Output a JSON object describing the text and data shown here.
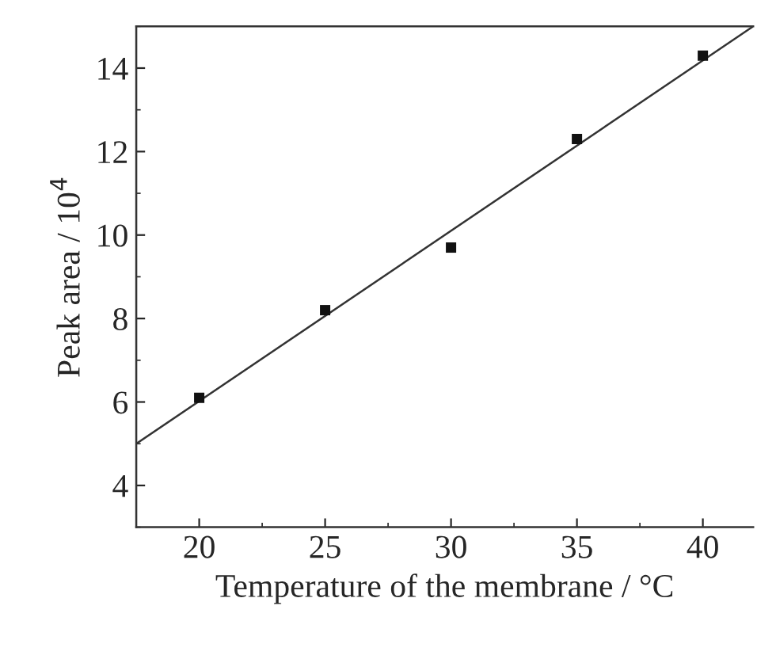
{
  "chart_data": {
    "type": "scatter",
    "xlabel": "Temperature of the membrane / °C",
    "ylabel": "Peak area / 10$^{4}$",
    "series": [
      {
        "color": "#111111",
        "marker": "square",
        "x": [
          20,
          25,
          30,
          35,
          40
        ],
        "values": [
          6.1,
          8.2,
          9.7,
          12.3,
          14.3
        ]
      },
      {
        "type": "line",
        "color": "#333333",
        "marker": "none",
        "line_style": "solid",
        "x": [
          17.5,
          42
        ],
        "values": [
          5.0,
          15.0
        ]
      }
    ],
    "xlim": [
      17.5,
      42
    ],
    "ylim": [
      3,
      15
    ],
    "xticks": [
      20,
      25,
      30,
      35,
      40
    ],
    "yticks": [
      4,
      6,
      8,
      10,
      12,
      14
    ],
    "grid": false,
    "legend": false
  }
}
